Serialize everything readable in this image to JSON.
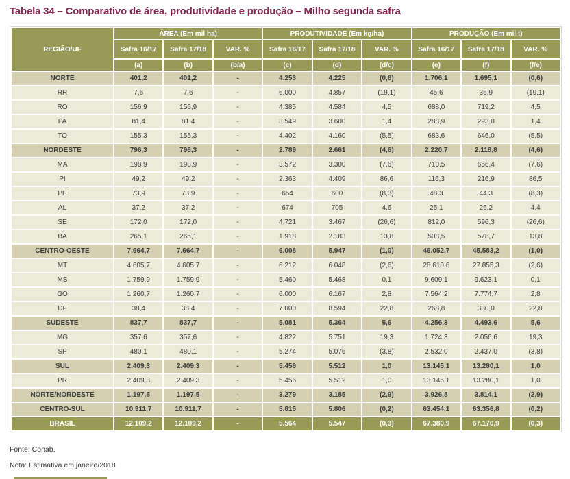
{
  "title": "Tabela 34 – Comparativo de área, produtividade e produção – Milho segunda safra",
  "colors": {
    "title_color": "#822850",
    "header_bg": "#9a9a57",
    "header_text": "#ffffff",
    "region_row_bg": "#d5d0b2",
    "state_row_bg": "#ecead9",
    "total_row_bg": "#9a9a57",
    "total_row_text": "#ffffff",
    "body_text": "#3c3c3c"
  },
  "table": {
    "region_header": "REGIÃO/UF",
    "col_groups": [
      {
        "label": "ÁREA (Em mil ha)"
      },
      {
        "label": "PRODUTIVIDADE (Em kg/ha)"
      },
      {
        "label": "PRODUÇÃO (Em mil t)"
      }
    ],
    "sub_headers": [
      "Safra 16/17",
      "Safra 17/18",
      "VAR. %",
      "Safra 16/17",
      "Safra 17/18",
      "VAR. %",
      "Safra 16/17",
      "Safra 17/18",
      "VAR. %"
    ],
    "letter_headers": [
      "(a)",
      "(b)",
      "(b/a)",
      "(c)",
      "(d)",
      "(d/c)",
      "(e)",
      "(f)",
      "(f/e)"
    ],
    "rows": [
      {
        "label": "NORTE",
        "type": "region",
        "values": [
          "401,2",
          "401,2",
          "-",
          "4.253",
          "4.225",
          "(0,6)",
          "1.706,1",
          "1.695,1",
          "(0,6)"
        ]
      },
      {
        "label": "RR",
        "type": "state",
        "values": [
          "7,6",
          "7,6",
          "-",
          "6.000",
          "4.857",
          "(19,1)",
          "45,6",
          "36,9",
          "(19,1)"
        ]
      },
      {
        "label": "RO",
        "type": "state",
        "values": [
          "156,9",
          "156,9",
          "-",
          "4.385",
          "4.584",
          "4,5",
          "688,0",
          "719,2",
          "4,5"
        ]
      },
      {
        "label": "PA",
        "type": "state",
        "values": [
          "81,4",
          "81,4",
          "-",
          "3.549",
          "3.600",
          "1,4",
          "288,9",
          "293,0",
          "1,4"
        ]
      },
      {
        "label": "TO",
        "type": "state",
        "values": [
          "155,3",
          "155,3",
          "-",
          "4.402",
          "4.160",
          "(5,5)",
          "683,6",
          "646,0",
          "(5,5)"
        ]
      },
      {
        "label": "NORDESTE",
        "type": "region",
        "values": [
          "796,3",
          "796,3",
          "-",
          "2.789",
          "2.661",
          "(4,6)",
          "2.220,7",
          "2.118,8",
          "(4,6)"
        ]
      },
      {
        "label": "MA",
        "type": "state",
        "values": [
          "198,9",
          "198,9",
          "-",
          "3.572",
          "3.300",
          "(7,6)",
          "710,5",
          "656,4",
          "(7,6)"
        ]
      },
      {
        "label": "PI",
        "type": "state",
        "values": [
          "49,2",
          "49,2",
          "-",
          "2.363",
          "4.409",
          "86,6",
          "116,3",
          "216,9",
          "86,5"
        ]
      },
      {
        "label": "PE",
        "type": "state",
        "values": [
          "73,9",
          "73,9",
          "-",
          "654",
          "600",
          "(8,3)",
          "48,3",
          "44,3",
          "(8,3)"
        ]
      },
      {
        "label": "AL",
        "type": "state",
        "values": [
          "37,2",
          "37,2",
          "-",
          "674",
          "705",
          "4,6",
          "25,1",
          "26,2",
          "4,4"
        ]
      },
      {
        "label": "SE",
        "type": "state",
        "values": [
          "172,0",
          "172,0",
          "-",
          "4.721",
          "3.467",
          "(26,6)",
          "812,0",
          "596,3",
          "(26,6)"
        ]
      },
      {
        "label": "BA",
        "type": "state",
        "values": [
          "265,1",
          "265,1",
          "-",
          "1.918",
          "2.183",
          "13,8",
          "508,5",
          "578,7",
          "13,8"
        ]
      },
      {
        "label": "CENTRO-OESTE",
        "type": "region",
        "values": [
          "7.664,7",
          "7.664,7",
          "-",
          "6.008",
          "5.947",
          "(1,0)",
          "46.052,7",
          "45.583,2",
          "(1,0)"
        ]
      },
      {
        "label": "MT",
        "type": "state",
        "values": [
          "4.605,7",
          "4.605,7",
          "-",
          "6.212",
          "6.048",
          "(2,6)",
          "28.610,6",
          "27.855,3",
          "(2,6)"
        ]
      },
      {
        "label": "MS",
        "type": "state",
        "values": [
          "1.759,9",
          "1.759,9",
          "-",
          "5.460",
          "5.468",
          "0,1",
          "9.609,1",
          "9.623,1",
          "0,1"
        ]
      },
      {
        "label": "GO",
        "type": "state",
        "values": [
          "1.260,7",
          "1.260,7",
          "-",
          "6.000",
          "6.167",
          "2,8",
          "7.564,2",
          "7.774,7",
          "2,8"
        ]
      },
      {
        "label": "DF",
        "type": "state",
        "values": [
          "38,4",
          "38,4",
          "-",
          "7.000",
          "8.594",
          "22,8",
          "268,8",
          "330,0",
          "22,8"
        ]
      },
      {
        "label": "SUDESTE",
        "type": "region",
        "values": [
          "837,7",
          "837,7",
          "-",
          "5.081",
          "5.364",
          "5,6",
          "4.256,3",
          "4.493,6",
          "5,6"
        ]
      },
      {
        "label": "MG",
        "type": "state",
        "values": [
          "357,6",
          "357,6",
          "-",
          "4.822",
          "5.751",
          "19,3",
          "1.724,3",
          "2.056,6",
          "19,3"
        ]
      },
      {
        "label": "SP",
        "type": "state",
        "values": [
          "480,1",
          "480,1",
          "-",
          "5.274",
          "5.076",
          "(3,8)",
          "2.532,0",
          "2.437,0",
          "(3,8)"
        ]
      },
      {
        "label": "SUL",
        "type": "region",
        "values": [
          "2.409,3",
          "2.409,3",
          "-",
          "5.456",
          "5.512",
          "1,0",
          "13.145,1",
          "13.280,1",
          "1,0"
        ]
      },
      {
        "label": "PR",
        "type": "state",
        "values": [
          "2.409,3",
          "2.409,3",
          "-",
          "5.456",
          "5.512",
          "1,0",
          "13.145,1",
          "13.280,1",
          "1,0"
        ]
      },
      {
        "label": "NORTE/NORDESTE",
        "type": "region",
        "values": [
          "1.197,5",
          "1.197,5",
          "-",
          "3.279",
          "3.185",
          "(2,9)",
          "3.926,8",
          "3.814,1",
          "(2,9)"
        ]
      },
      {
        "label": "CENTRO-SUL",
        "type": "region",
        "values": [
          "10.911,7",
          "10.911,7",
          "-",
          "5.815",
          "5.806",
          "(0,2)",
          "63.454,1",
          "63.356,8",
          "(0,2)"
        ]
      },
      {
        "label": "BRASIL",
        "type": "total",
        "values": [
          "12.109,2",
          "12.109,2",
          "-",
          "5.564",
          "5.547",
          "(0,3)",
          "67.380,9",
          "67.170,9",
          "(0,3)"
        ]
      }
    ]
  },
  "footer": {
    "source": "Fonte: Conab.",
    "note": "Nota: Estimativa em janeiro/2018"
  }
}
